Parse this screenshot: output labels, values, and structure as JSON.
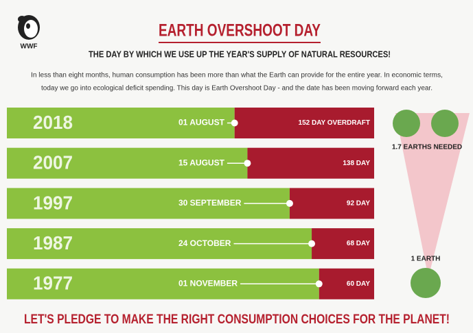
{
  "logo": "WWF",
  "chart_data": {
    "type": "bar",
    "orientation": "horizontal",
    "title": "EARTH OVERSHOOT DAY",
    "subtitle": "THE DAY BY WHICH WE USE UP THE YEAR'S SUPPLY OF NATURAL RESOURCES!",
    "description": [
      "In less than eight months, human consumption has been more than what the Earth can provide for the entire year. In economic terms,",
      "today we go into ecological deficit spending. This day is Earth Overshoot Day - and the date has been moving forward each year."
    ],
    "categories": [
      "2018",
      "2007",
      "1997",
      "1987",
      "1977"
    ],
    "dates": [
      "01 AUGUST",
      "15 AUGUST",
      "30 SEPTEMBER",
      "24 OCTOBER",
      "01 NOVEMBER"
    ],
    "values": [
      152,
      138,
      92,
      68,
      60
    ],
    "value_labels": [
      "152 DAY OVERDRAFT",
      "138 DAY",
      "92 DAY",
      "68 DAY",
      "60 DAY"
    ],
    "color": "#a81b2e",
    "base_color": "#8cc13f",
    "xlim": [
      0,
      400
    ],
    "earths": {
      "top": "1.7 EARTHS NEEDED",
      "bottom": "1 EARTH"
    },
    "closing": "LET'S PLEDGE TO MAKE THE RIGHT CONSUMPTION CHOICES FOR THE PLANET!"
  }
}
